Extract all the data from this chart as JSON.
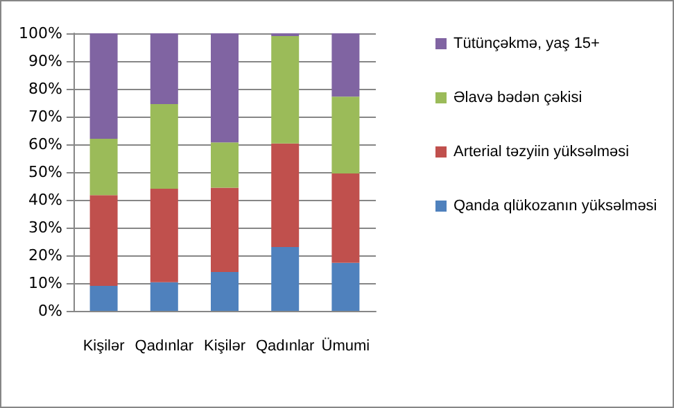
{
  "chart_data": {
    "type": "bar",
    "stacked": true,
    "categories": [
      "Kişilər",
      "Qadınlar",
      "Kişilər",
      "Qadınlar",
      "Ümumi"
    ],
    "series": [
      {
        "name": "Qanda qlükozanın yüksəlməsi",
        "color": "#4f81bd",
        "values": [
          9,
          10.3,
          14,
          23,
          17.3
        ]
      },
      {
        "name": "Arterial təzyiin yüksəlməsi",
        "color": "#c0504d",
        "values": [
          32.7,
          33.7,
          30.4,
          37.3,
          32.2
        ]
      },
      {
        "name": "Əlavə bədən çəkisi",
        "color": "#9bbb59",
        "values": [
          20.3,
          30.5,
          16.3,
          38.7,
          27.7
        ]
      },
      {
        "name": "Tütünçəkmə, yaş 15+",
        "color": "#8064a2",
        "values": [
          38,
          25.5,
          39.3,
          1,
          22.8
        ]
      }
    ],
    "ylim": [
      0,
      100
    ],
    "yticks": [
      {
        "value": 0,
        "label": "0%"
      },
      {
        "value": 10,
        "label": "10%"
      },
      {
        "value": 20,
        "label": "20%"
      },
      {
        "value": 30,
        "label": "30%"
      },
      {
        "value": 40,
        "label": "40%"
      },
      {
        "value": 50,
        "label": "50%"
      },
      {
        "value": 60,
        "label": "60%"
      },
      {
        "value": 70,
        "label": "70%"
      },
      {
        "value": 80,
        "label": "80%"
      },
      {
        "value": 90,
        "label": "90%"
      },
      {
        "value": 100,
        "label": "100%"
      }
    ],
    "grid": "y",
    "legend": "right"
  }
}
